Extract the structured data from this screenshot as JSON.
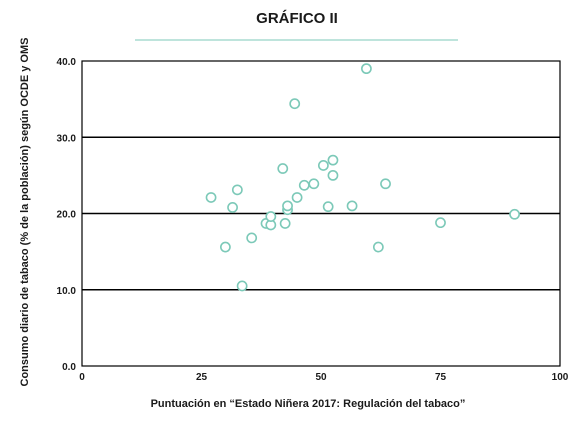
{
  "chart_data": {
    "type": "scatter",
    "title": "GRÁFICO II",
    "xlabel": "Puntuación en “Estado Niñera 2017: Regulación del tabaco”",
    "ylabel": "Consumo diario de tabaco (% de la población) según OCDE y OMS",
    "xlim": [
      0,
      100
    ],
    "ylim": [
      0,
      40
    ],
    "xticks": [
      "0",
      "25",
      "50",
      "75",
      "100"
    ],
    "yticks": [
      "0.0",
      "10.0",
      "20.0",
      "30.0",
      "40.0"
    ],
    "grid": "horizontal",
    "colors": {
      "marker": "#7cc9b8",
      "accent_line": "#7cc9b8",
      "grid": "#000000"
    },
    "points": [
      {
        "x": 27,
        "y": 22.1
      },
      {
        "x": 30,
        "y": 15.6
      },
      {
        "x": 31.5,
        "y": 20.8
      },
      {
        "x": 32.5,
        "y": 23.1
      },
      {
        "x": 33.5,
        "y": 10.5
      },
      {
        "x": 35.5,
        "y": 16.8
      },
      {
        "x": 38.5,
        "y": 18.7
      },
      {
        "x": 39.5,
        "y": 18.5
      },
      {
        "x": 39.5,
        "y": 19.6
      },
      {
        "x": 42,
        "y": 25.9
      },
      {
        "x": 42.5,
        "y": 18.7
      },
      {
        "x": 43,
        "y": 20.5
      },
      {
        "x": 43,
        "y": 21.0
      },
      {
        "x": 44.5,
        "y": 34.4
      },
      {
        "x": 45,
        "y": 22.1
      },
      {
        "x": 46.5,
        "y": 23.7
      },
      {
        "x": 48.5,
        "y": 23.9
      },
      {
        "x": 50.5,
        "y": 26.3
      },
      {
        "x": 51.5,
        "y": 20.9
      },
      {
        "x": 52.5,
        "y": 27.0
      },
      {
        "x": 52.5,
        "y": 25.0
      },
      {
        "x": 56.5,
        "y": 21.0
      },
      {
        "x": 59.5,
        "y": 39.0
      },
      {
        "x": 62,
        "y": 15.6
      },
      {
        "x": 63.5,
        "y": 23.9
      },
      {
        "x": 75,
        "y": 18.8
      },
      {
        "x": 90.5,
        "y": 19.9
      }
    ]
  }
}
